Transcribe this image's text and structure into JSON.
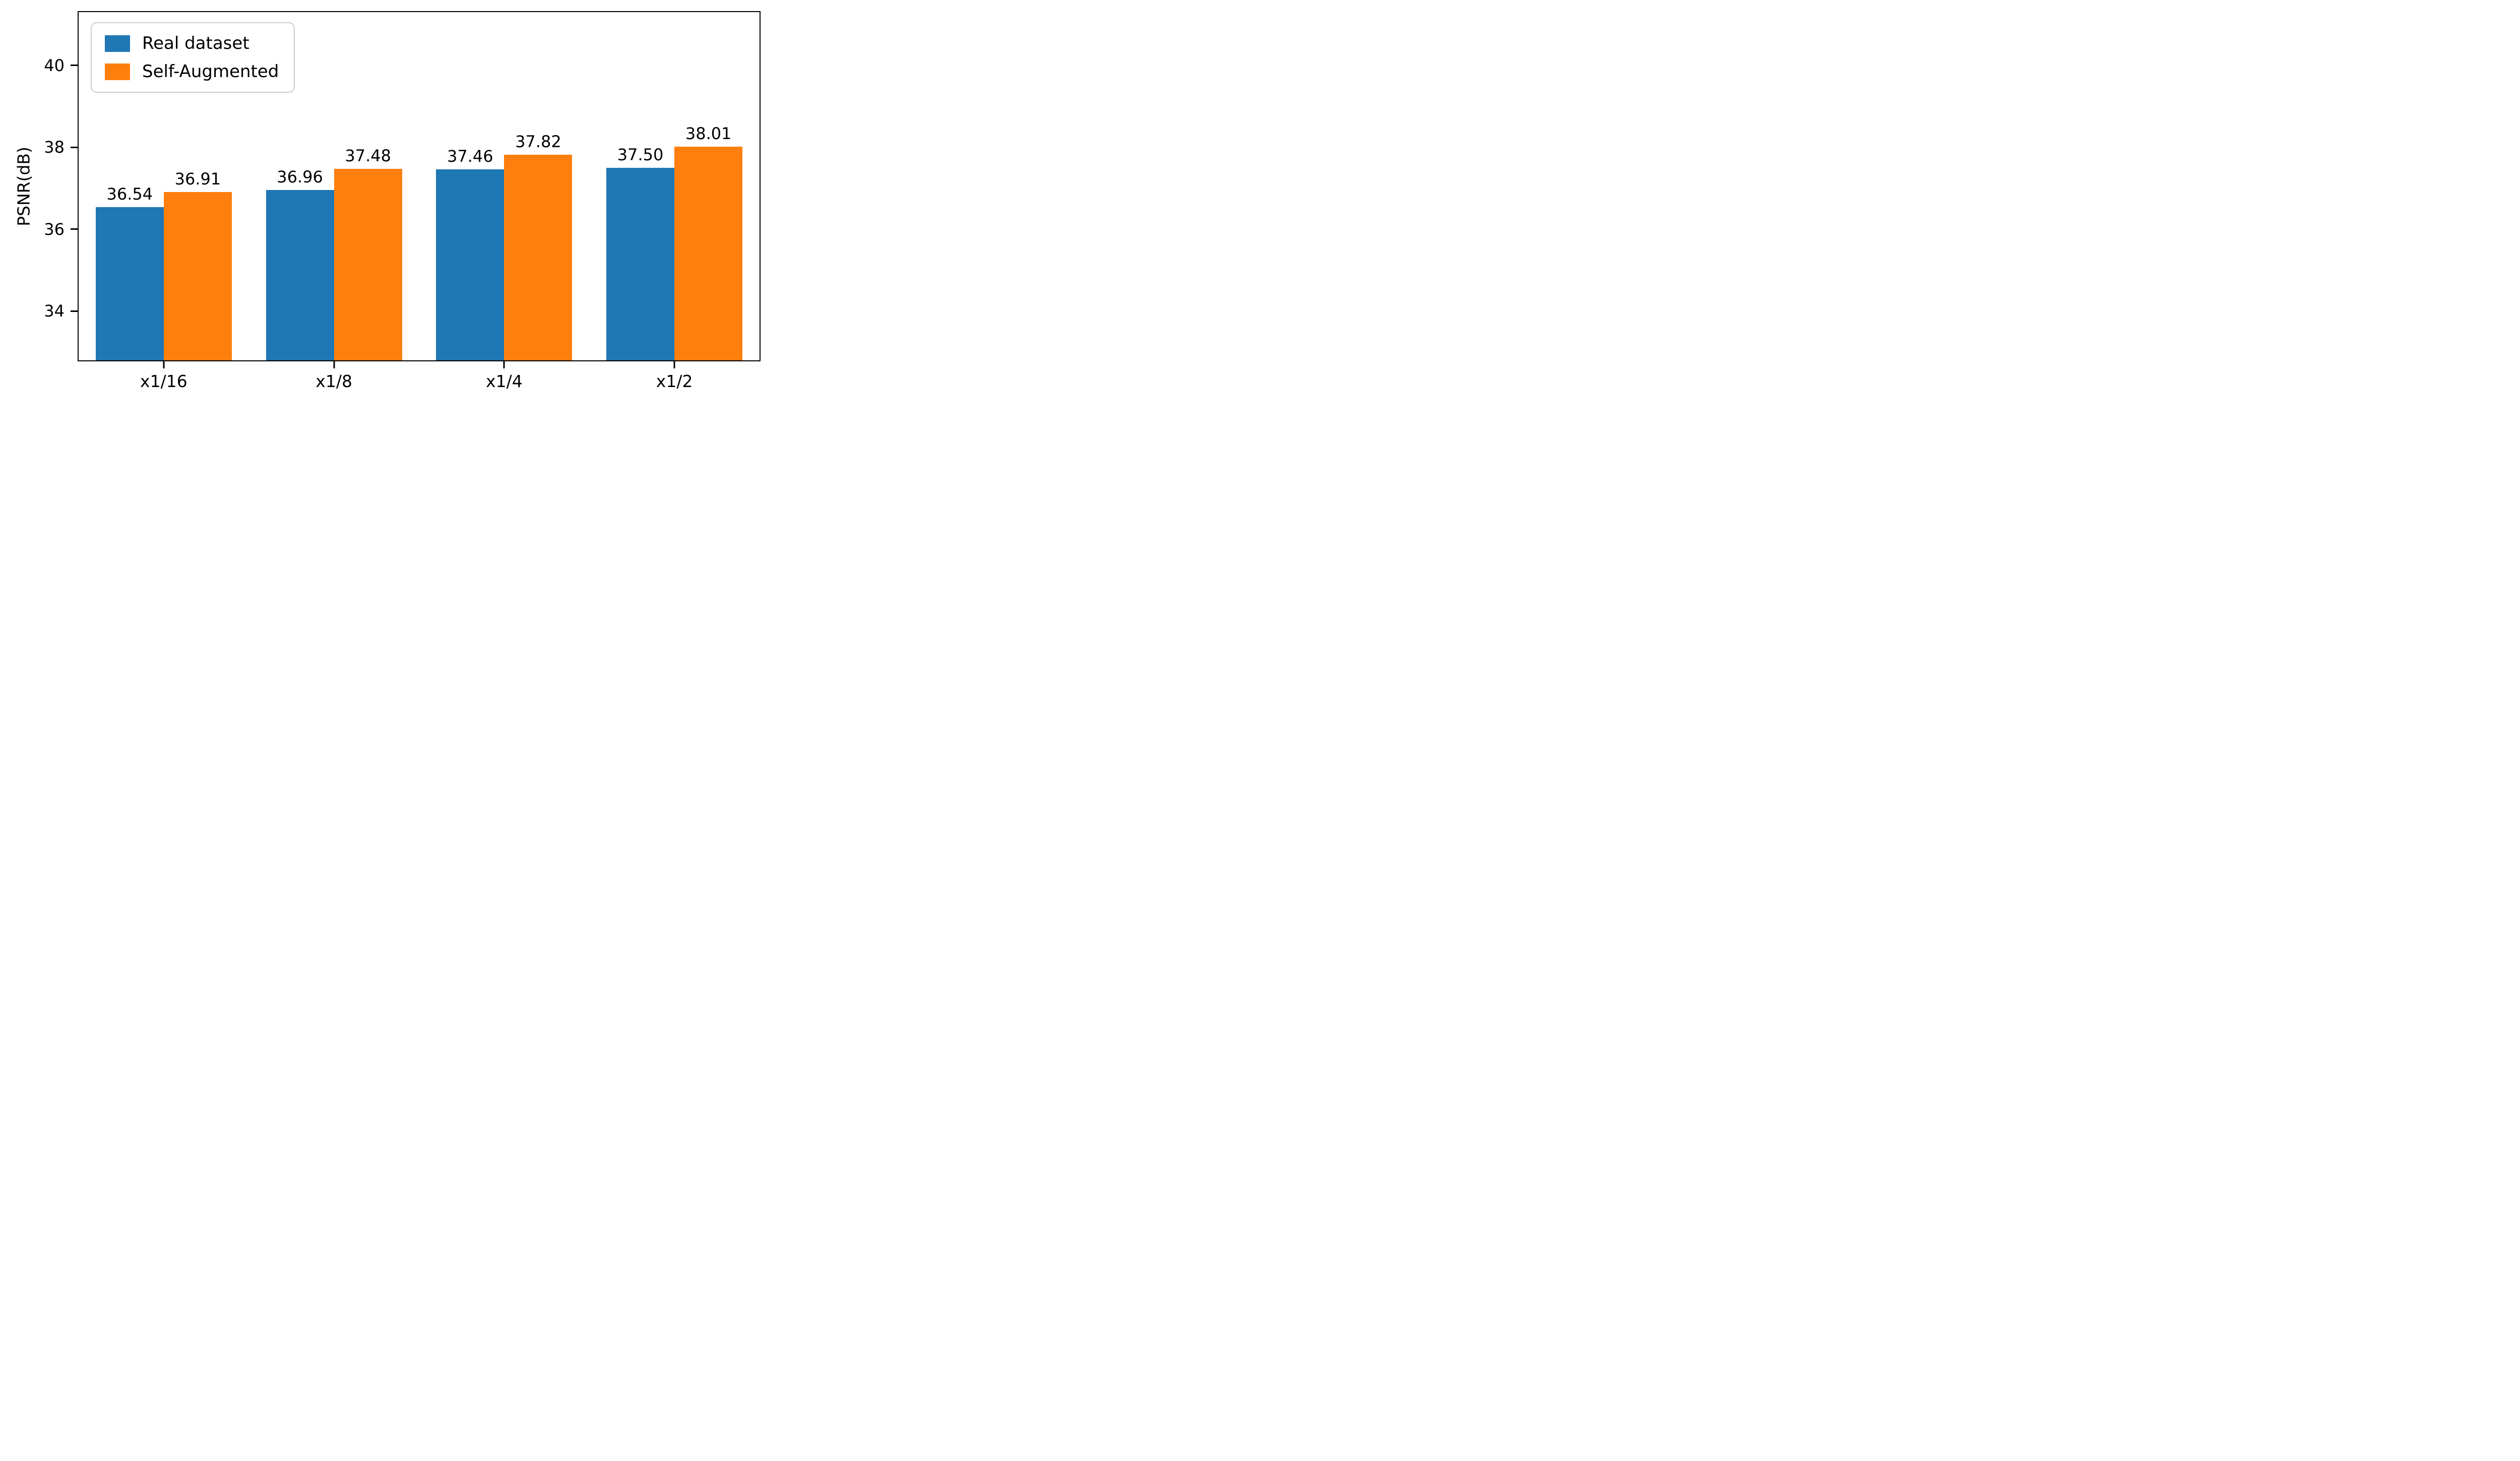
{
  "chart_data": {
    "type": "bar",
    "title": "",
    "xlabel": "",
    "ylabel": "PSNR(dB)",
    "categories": [
      "x1/16",
      "x1/8",
      "x1/4",
      "x1/2"
    ],
    "series": [
      {
        "name": "Real dataset",
        "color": "#1f77b4",
        "values": [
          36.54,
          36.96,
          37.46,
          37.5
        ]
      },
      {
        "name": "Self-Augmented",
        "color": "#ff7f0e",
        "values": [
          36.91,
          37.48,
          37.82,
          38.01
        ]
      }
    ],
    "bar_value_labels": [
      [
        "36.54",
        "36.96",
        "37.46",
        "37.50"
      ],
      [
        "36.91",
        "37.48",
        "37.82",
        "38.01"
      ]
    ],
    "yticks": [
      34,
      36,
      38,
      40
    ],
    "ylim": [
      32.8,
      41.3
    ],
    "grid": false,
    "legend_position": "upper left"
  },
  "colors": {
    "real_dataset": "#1f77b4",
    "self_augmented": "#ff7f0e",
    "axis": "#000000",
    "legend_border": "#cccccc",
    "background": "#ffffff",
    "text": "#000000"
  }
}
